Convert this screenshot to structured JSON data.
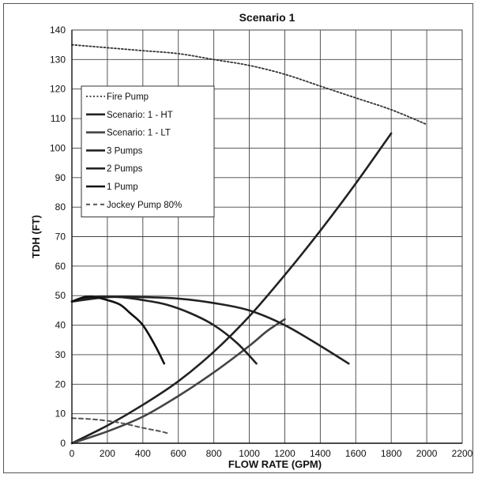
{
  "chart_data": {
    "type": "line",
    "title": "Scenario 1",
    "xlabel": "FLOW RATE (GPM)",
    "ylabel": "TDH (FT)",
    "xlim": [
      0,
      2200
    ],
    "ylim": [
      0,
      140
    ],
    "x_ticks": [
      0,
      200,
      400,
      600,
      800,
      1000,
      1200,
      1400,
      1600,
      1800,
      2000,
      2200
    ],
    "y_ticks": [
      0,
      10,
      20,
      30,
      40,
      50,
      60,
      70,
      80,
      90,
      100,
      110,
      120,
      130,
      140
    ],
    "grid": true,
    "legend_position": "upper-left",
    "series": [
      {
        "name": "Fire Pump",
        "style": "dotted",
        "color": "#333333",
        "points": [
          [
            0,
            135
          ],
          [
            200,
            134
          ],
          [
            400,
            133
          ],
          [
            600,
            132
          ],
          [
            800,
            130
          ],
          [
            1000,
            128
          ],
          [
            1200,
            125
          ],
          [
            1400,
            121
          ],
          [
            1600,
            117
          ],
          [
            1800,
            113
          ],
          [
            2000,
            108
          ]
        ]
      },
      {
        "name": "Scenario: 1 - HT",
        "style": "solid",
        "color": "#222222",
        "points": [
          [
            0,
            0
          ],
          [
            200,
            6
          ],
          [
            400,
            13
          ],
          [
            600,
            21
          ],
          [
            800,
            31
          ],
          [
            1000,
            43
          ],
          [
            1200,
            57
          ],
          [
            1400,
            72
          ],
          [
            1600,
            88
          ],
          [
            1800,
            105
          ]
        ]
      },
      {
        "name": "Scenario: 1 - LT",
        "style": "solid",
        "color": "#444444",
        "points": [
          [
            0,
            0
          ],
          [
            200,
            4
          ],
          [
            400,
            9
          ],
          [
            600,
            16
          ],
          [
            800,
            24
          ],
          [
            1000,
            33
          ],
          [
            1100,
            38
          ],
          [
            1200,
            42
          ]
        ]
      },
      {
        "name": "3 Pumps",
        "style": "solid",
        "color": "#222222",
        "points": [
          [
            0,
            48
          ],
          [
            200,
            49.5
          ],
          [
            400,
            49.5
          ],
          [
            600,
            49
          ],
          [
            800,
            47.5
          ],
          [
            1000,
            45
          ],
          [
            1200,
            40
          ],
          [
            1400,
            33
          ],
          [
            1560,
            27
          ]
        ]
      },
      {
        "name": "2 Pumps",
        "style": "solid",
        "color": "#222222",
        "points": [
          [
            0,
            48
          ],
          [
            130,
            49.5
          ],
          [
            270,
            49.5
          ],
          [
            400,
            48.5
          ],
          [
            530,
            47
          ],
          [
            670,
            44
          ],
          [
            800,
            40
          ],
          [
            930,
            34
          ],
          [
            1040,
            27
          ]
        ]
      },
      {
        "name": "1 Pump",
        "style": "solid",
        "color": "#111111",
        "points": [
          [
            0,
            48
          ],
          [
            70,
            49.5
          ],
          [
            130,
            49.5
          ],
          [
            200,
            48.5
          ],
          [
            270,
            47
          ],
          [
            330,
            44
          ],
          [
            400,
            40
          ],
          [
            470,
            33
          ],
          [
            520,
            27
          ]
        ]
      },
      {
        "name": "Jockey Pump 80%",
        "style": "dashed",
        "color": "#555555",
        "points": [
          [
            0,
            8.5
          ],
          [
            100,
            8.2
          ],
          [
            200,
            7.6
          ],
          [
            300,
            6.6
          ],
          [
            400,
            5.2
          ],
          [
            500,
            4.0
          ],
          [
            550,
            3.2
          ]
        ]
      }
    ]
  }
}
